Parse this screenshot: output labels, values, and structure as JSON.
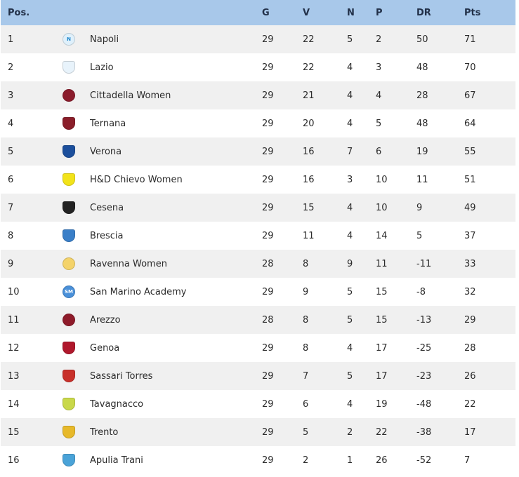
{
  "headers": {
    "pos": "Pos.",
    "g": "G",
    "v": "V",
    "n": "N",
    "p": "P",
    "dr": "DR",
    "pts": "Pts"
  },
  "teams": [
    {
      "pos": "1",
      "name": "Napoli",
      "g": "29",
      "v": "22",
      "n": "5",
      "p": "2",
      "dr": "50",
      "pts": "71",
      "logo": {
        "icon": "napoli-logo-icon",
        "letter": "N",
        "color": "#1f86c9",
        "bg": "#dff0fb",
        "shape": "round"
      }
    },
    {
      "pos": "2",
      "name": "Lazio",
      "g": "29",
      "v": "22",
      "n": "4",
      "p": "3",
      "dr": "48",
      "pts": "70",
      "logo": {
        "icon": "lazio-logo-icon",
        "letter": "",
        "color": "#7ab4e0",
        "bg": "#e8f3fb",
        "shape": "shield"
      }
    },
    {
      "pos": "3",
      "name": "Cittadella Women",
      "g": "29",
      "v": "21",
      "n": "4",
      "p": "4",
      "dr": "28",
      "pts": "67",
      "logo": {
        "icon": "cittadella-logo-icon",
        "letter": "",
        "color": "#ffffff",
        "bg": "#8b1c2c",
        "shape": "round"
      }
    },
    {
      "pos": "4",
      "name": "Ternana",
      "g": "29",
      "v": "20",
      "n": "4",
      "p": "5",
      "dr": "48",
      "pts": "64",
      "logo": {
        "icon": "ternana-logo-icon",
        "letter": "",
        "color": "#ffffff",
        "bg": "#8a1e2a",
        "shape": "shield"
      }
    },
    {
      "pos": "5",
      "name": "Verona",
      "g": "29",
      "v": "16",
      "n": "7",
      "p": "6",
      "dr": "19",
      "pts": "55",
      "logo": {
        "icon": "verona-logo-icon",
        "letter": "",
        "color": "#ffffff",
        "bg": "#1c4f9c",
        "shape": "shield"
      }
    },
    {
      "pos": "6",
      "name": "H&D Chievo Women",
      "g": "29",
      "v": "16",
      "n": "3",
      "p": "10",
      "dr": "11",
      "pts": "51",
      "logo": {
        "icon": "chievo-logo-icon",
        "letter": "",
        "color": "#1c3f8c",
        "bg": "#f2e31a",
        "shape": "shield"
      }
    },
    {
      "pos": "7",
      "name": "Cesena",
      "g": "29",
      "v": "15",
      "n": "4",
      "p": "10",
      "dr": "9",
      "pts": "49",
      "logo": {
        "icon": "cesena-logo-icon",
        "letter": "",
        "color": "#ffffff",
        "bg": "#222222",
        "shape": "shield"
      }
    },
    {
      "pos": "8",
      "name": "Brescia",
      "g": "29",
      "v": "11",
      "n": "4",
      "p": "14",
      "dr": "5",
      "pts": "37",
      "logo": {
        "icon": "brescia-logo-icon",
        "letter": "",
        "color": "#ffffff",
        "bg": "#3a7fc8",
        "shape": "shield"
      }
    },
    {
      "pos": "9",
      "name": "Ravenna Women",
      "g": "28",
      "v": "8",
      "n": "9",
      "p": "11",
      "dr": "-11",
      "pts": "33",
      "logo": {
        "icon": "ravenna-logo-icon",
        "letter": "",
        "color": "#b02020",
        "bg": "#f4d36a",
        "shape": "round"
      }
    },
    {
      "pos": "10",
      "name": "San Marino Academy",
      "g": "29",
      "v": "9",
      "n": "5",
      "p": "15",
      "dr": "-8",
      "pts": "32",
      "logo": {
        "icon": "san-marino-logo-icon",
        "letter": "SM",
        "color": "#ffffff",
        "bg": "#4a90d9",
        "shape": "round"
      }
    },
    {
      "pos": "11",
      "name": "Arezzo",
      "g": "28",
      "v": "8",
      "n": "5",
      "p": "15",
      "dr": "-13",
      "pts": "29",
      "logo": {
        "icon": "arezzo-logo-icon",
        "letter": "",
        "color": "#ffffff",
        "bg": "#8e1b2a",
        "shape": "round"
      }
    },
    {
      "pos": "12",
      "name": "Genoa",
      "g": "29",
      "v": "8",
      "n": "4",
      "p": "17",
      "dr": "-25",
      "pts": "28",
      "logo": {
        "icon": "genoa-logo-icon",
        "letter": "",
        "color": "#ffffff",
        "bg": "#b0182c",
        "shape": "shield"
      }
    },
    {
      "pos": "13",
      "name": "Sassari Torres",
      "g": "29",
      "v": "7",
      "n": "5",
      "p": "17",
      "dr": "-23",
      "pts": "26",
      "logo": {
        "icon": "sassari-torres-logo-icon",
        "letter": "",
        "color": "#ffffff",
        "bg": "#c8302a",
        "shape": "shield"
      }
    },
    {
      "pos": "14",
      "name": "Tavagnacco",
      "g": "29",
      "v": "6",
      "n": "4",
      "p": "19",
      "dr": "-48",
      "pts": "22",
      "logo": {
        "icon": "tavagnacco-logo-icon",
        "letter": "",
        "color": "#2a5aa8",
        "bg": "#c9d84a",
        "shape": "shield"
      }
    },
    {
      "pos": "15",
      "name": "Trento",
      "g": "29",
      "v": "5",
      "n": "2",
      "p": "22",
      "dr": "-38",
      "pts": "17",
      "logo": {
        "icon": "trento-logo-icon",
        "letter": "",
        "color": "#ffffff",
        "bg": "#e7b92a",
        "shape": "shield"
      }
    },
    {
      "pos": "16",
      "name": "Apulia Trani",
      "g": "29",
      "v": "2",
      "n": "1",
      "p": "26",
      "dr": "-52",
      "pts": "7",
      "logo": {
        "icon": "apulia-trani-logo-icon",
        "letter": "",
        "color": "#ffffff",
        "bg": "#4aa3d8",
        "shape": "shield"
      }
    }
  ]
}
